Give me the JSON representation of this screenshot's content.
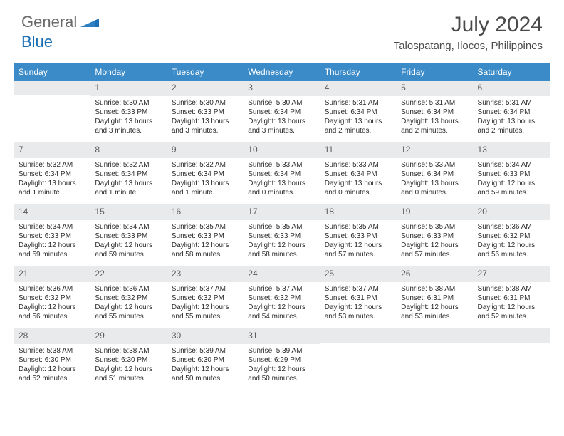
{
  "logo": {
    "text1": "General",
    "text2": "Blue"
  },
  "title": "July 2024",
  "subtitle": "Talospatang, Ilocos, Philippines",
  "colors": {
    "header_bg": "#3b8bc9",
    "header_text": "#ffffff",
    "daynum_bg": "#e9eaec",
    "daynum_text": "#5a5a5a",
    "body_text": "#2b2b2b",
    "rule": "#2e6ca6",
    "title_text": "#4a4a4a",
    "logo_gray": "#6a6a6a",
    "logo_blue": "#1b6fb5"
  },
  "weekdays": [
    "Sunday",
    "Monday",
    "Tuesday",
    "Wednesday",
    "Thursday",
    "Friday",
    "Saturday"
  ],
  "weeks": [
    [
      null,
      {
        "n": "1",
        "sr": "Sunrise: 5:30 AM",
        "ss": "Sunset: 6:33 PM",
        "d1": "Daylight: 13 hours",
        "d2": "and 3 minutes."
      },
      {
        "n": "2",
        "sr": "Sunrise: 5:30 AM",
        "ss": "Sunset: 6:33 PM",
        "d1": "Daylight: 13 hours",
        "d2": "and 3 minutes."
      },
      {
        "n": "3",
        "sr": "Sunrise: 5:30 AM",
        "ss": "Sunset: 6:34 PM",
        "d1": "Daylight: 13 hours",
        "d2": "and 3 minutes."
      },
      {
        "n": "4",
        "sr": "Sunrise: 5:31 AM",
        "ss": "Sunset: 6:34 PM",
        "d1": "Daylight: 13 hours",
        "d2": "and 2 minutes."
      },
      {
        "n": "5",
        "sr": "Sunrise: 5:31 AM",
        "ss": "Sunset: 6:34 PM",
        "d1": "Daylight: 13 hours",
        "d2": "and 2 minutes."
      },
      {
        "n": "6",
        "sr": "Sunrise: 5:31 AM",
        "ss": "Sunset: 6:34 PM",
        "d1": "Daylight: 13 hours",
        "d2": "and 2 minutes."
      }
    ],
    [
      {
        "n": "7",
        "sr": "Sunrise: 5:32 AM",
        "ss": "Sunset: 6:34 PM",
        "d1": "Daylight: 13 hours",
        "d2": "and 1 minute."
      },
      {
        "n": "8",
        "sr": "Sunrise: 5:32 AM",
        "ss": "Sunset: 6:34 PM",
        "d1": "Daylight: 13 hours",
        "d2": "and 1 minute."
      },
      {
        "n": "9",
        "sr": "Sunrise: 5:32 AM",
        "ss": "Sunset: 6:34 PM",
        "d1": "Daylight: 13 hours",
        "d2": "and 1 minute."
      },
      {
        "n": "10",
        "sr": "Sunrise: 5:33 AM",
        "ss": "Sunset: 6:34 PM",
        "d1": "Daylight: 13 hours",
        "d2": "and 0 minutes."
      },
      {
        "n": "11",
        "sr": "Sunrise: 5:33 AM",
        "ss": "Sunset: 6:34 PM",
        "d1": "Daylight: 13 hours",
        "d2": "and 0 minutes."
      },
      {
        "n": "12",
        "sr": "Sunrise: 5:33 AM",
        "ss": "Sunset: 6:34 PM",
        "d1": "Daylight: 13 hours",
        "d2": "and 0 minutes."
      },
      {
        "n": "13",
        "sr": "Sunrise: 5:34 AM",
        "ss": "Sunset: 6:33 PM",
        "d1": "Daylight: 12 hours",
        "d2": "and 59 minutes."
      }
    ],
    [
      {
        "n": "14",
        "sr": "Sunrise: 5:34 AM",
        "ss": "Sunset: 6:33 PM",
        "d1": "Daylight: 12 hours",
        "d2": "and 59 minutes."
      },
      {
        "n": "15",
        "sr": "Sunrise: 5:34 AM",
        "ss": "Sunset: 6:33 PM",
        "d1": "Daylight: 12 hours",
        "d2": "and 59 minutes."
      },
      {
        "n": "16",
        "sr": "Sunrise: 5:35 AM",
        "ss": "Sunset: 6:33 PM",
        "d1": "Daylight: 12 hours",
        "d2": "and 58 minutes."
      },
      {
        "n": "17",
        "sr": "Sunrise: 5:35 AM",
        "ss": "Sunset: 6:33 PM",
        "d1": "Daylight: 12 hours",
        "d2": "and 58 minutes."
      },
      {
        "n": "18",
        "sr": "Sunrise: 5:35 AM",
        "ss": "Sunset: 6:33 PM",
        "d1": "Daylight: 12 hours",
        "d2": "and 57 minutes."
      },
      {
        "n": "19",
        "sr": "Sunrise: 5:35 AM",
        "ss": "Sunset: 6:33 PM",
        "d1": "Daylight: 12 hours",
        "d2": "and 57 minutes."
      },
      {
        "n": "20",
        "sr": "Sunrise: 5:36 AM",
        "ss": "Sunset: 6:32 PM",
        "d1": "Daylight: 12 hours",
        "d2": "and 56 minutes."
      }
    ],
    [
      {
        "n": "21",
        "sr": "Sunrise: 5:36 AM",
        "ss": "Sunset: 6:32 PM",
        "d1": "Daylight: 12 hours",
        "d2": "and 56 minutes."
      },
      {
        "n": "22",
        "sr": "Sunrise: 5:36 AM",
        "ss": "Sunset: 6:32 PM",
        "d1": "Daylight: 12 hours",
        "d2": "and 55 minutes."
      },
      {
        "n": "23",
        "sr": "Sunrise: 5:37 AM",
        "ss": "Sunset: 6:32 PM",
        "d1": "Daylight: 12 hours",
        "d2": "and 55 minutes."
      },
      {
        "n": "24",
        "sr": "Sunrise: 5:37 AM",
        "ss": "Sunset: 6:32 PM",
        "d1": "Daylight: 12 hours",
        "d2": "and 54 minutes."
      },
      {
        "n": "25",
        "sr": "Sunrise: 5:37 AM",
        "ss": "Sunset: 6:31 PM",
        "d1": "Daylight: 12 hours",
        "d2": "and 53 minutes."
      },
      {
        "n": "26",
        "sr": "Sunrise: 5:38 AM",
        "ss": "Sunset: 6:31 PM",
        "d1": "Daylight: 12 hours",
        "d2": "and 53 minutes."
      },
      {
        "n": "27",
        "sr": "Sunrise: 5:38 AM",
        "ss": "Sunset: 6:31 PM",
        "d1": "Daylight: 12 hours",
        "d2": "and 52 minutes."
      }
    ],
    [
      {
        "n": "28",
        "sr": "Sunrise: 5:38 AM",
        "ss": "Sunset: 6:30 PM",
        "d1": "Daylight: 12 hours",
        "d2": "and 52 minutes."
      },
      {
        "n": "29",
        "sr": "Sunrise: 5:38 AM",
        "ss": "Sunset: 6:30 PM",
        "d1": "Daylight: 12 hours",
        "d2": "and 51 minutes."
      },
      {
        "n": "30",
        "sr": "Sunrise: 5:39 AM",
        "ss": "Sunset: 6:30 PM",
        "d1": "Daylight: 12 hours",
        "d2": "and 50 minutes."
      },
      {
        "n": "31",
        "sr": "Sunrise: 5:39 AM",
        "ss": "Sunset: 6:29 PM",
        "d1": "Daylight: 12 hours",
        "d2": "and 50 minutes."
      },
      null,
      null,
      null
    ]
  ]
}
